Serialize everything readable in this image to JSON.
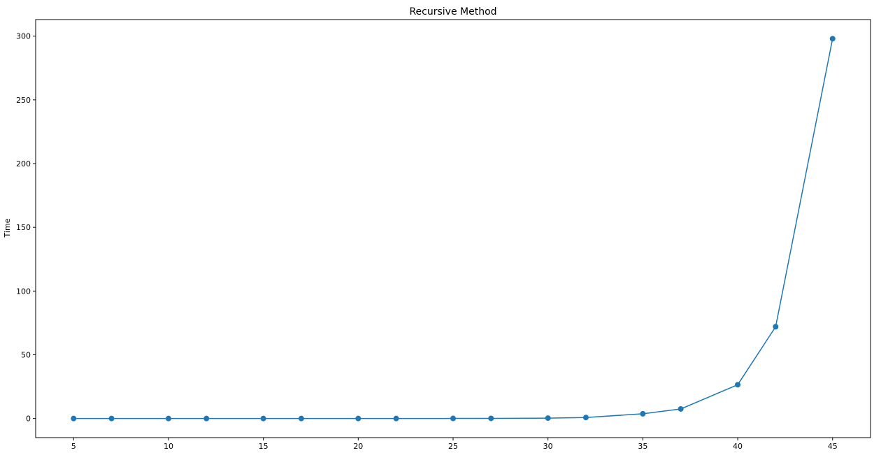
{
  "chart_data": {
    "type": "line",
    "title": "Recursive Method",
    "xlabel": "",
    "ylabel": "Time",
    "xlim": [
      3,
      47
    ],
    "ylim": [
      -15,
      313
    ],
    "x_ticks": [
      5,
      10,
      15,
      20,
      25,
      30,
      35,
      40,
      45
    ],
    "y_ticks": [
      0,
      50,
      100,
      150,
      200,
      250,
      300
    ],
    "grid": false,
    "marker": "circle",
    "series": [
      {
        "x": [
          5,
          7,
          10,
          12,
          15,
          17,
          20,
          22,
          25,
          27,
          30,
          32,
          35,
          37,
          40,
          42,
          45
        ],
        "y": [
          0,
          0,
          0,
          0,
          0,
          0,
          0,
          0,
          0.05,
          0.1,
          0.3,
          0.8,
          3.7,
          7.5,
          26.5,
          72,
          298
        ],
        "color": "#1f77b4"
      }
    ]
  }
}
